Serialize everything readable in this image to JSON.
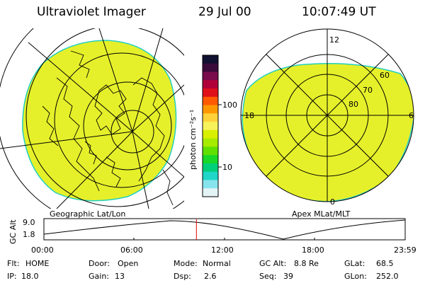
{
  "header": {
    "title": "Ultraviolet Imager",
    "date": "29 Jul 00",
    "time": "10:07:49 UT"
  },
  "left_map": {
    "caption": "Geographic Lat/Lon"
  },
  "right_map": {
    "caption": "Apex MLat/MLT",
    "mlt_labels": [
      "12",
      "18",
      "6",
      "0"
    ],
    "lat_labels": [
      "60",
      "70",
      "80"
    ]
  },
  "colorbar": {
    "unit": "photon cm⁻²s⁻¹",
    "ticks": [
      "100",
      "10"
    ],
    "colors": [
      "#101030",
      "#3a0a3a",
      "#7a0b4c",
      "#b0003a",
      "#e0101a",
      "#ff5a00",
      "#ff9800",
      "#ffd23a",
      "#f7f25a",
      "#d8f000",
      "#a6ec00",
      "#60e000",
      "#18d828",
      "#00cf7a",
      "#20d6c8",
      "#88e4ec",
      "#e4f4f6"
    ]
  },
  "image_color": "#e6f02a",
  "image_edge_color": "#22cfc0",
  "altitude_plot": {
    "axis_label": "GC Alt",
    "y_ticks": [
      "9.0",
      "1.8"
    ],
    "x_ticks": [
      "00:00",
      "06:00",
      "12:00",
      "18:00",
      "23:59"
    ],
    "current_time_fraction": 0.4221
  },
  "status": {
    "row1": [
      {
        "key": "Flt:",
        "value": "HOME"
      },
      {
        "key": "Door:",
        "value": "Open"
      },
      {
        "key": "Mode:",
        "value": "Normal"
      },
      {
        "key": "GC Alt:",
        "value": "8.8 Re"
      },
      {
        "key": "GLat:",
        "value": "68.5"
      }
    ],
    "row2": [
      {
        "key": "IP:",
        "value": "18.0"
      },
      {
        "key": "Gain:",
        "value": "13"
      },
      {
        "key": "Dsp:",
        "value": "2.6"
      },
      {
        "key": "Seq:",
        "value": "39"
      },
      {
        "key": "GLon:",
        "value": "252.0"
      }
    ]
  }
}
